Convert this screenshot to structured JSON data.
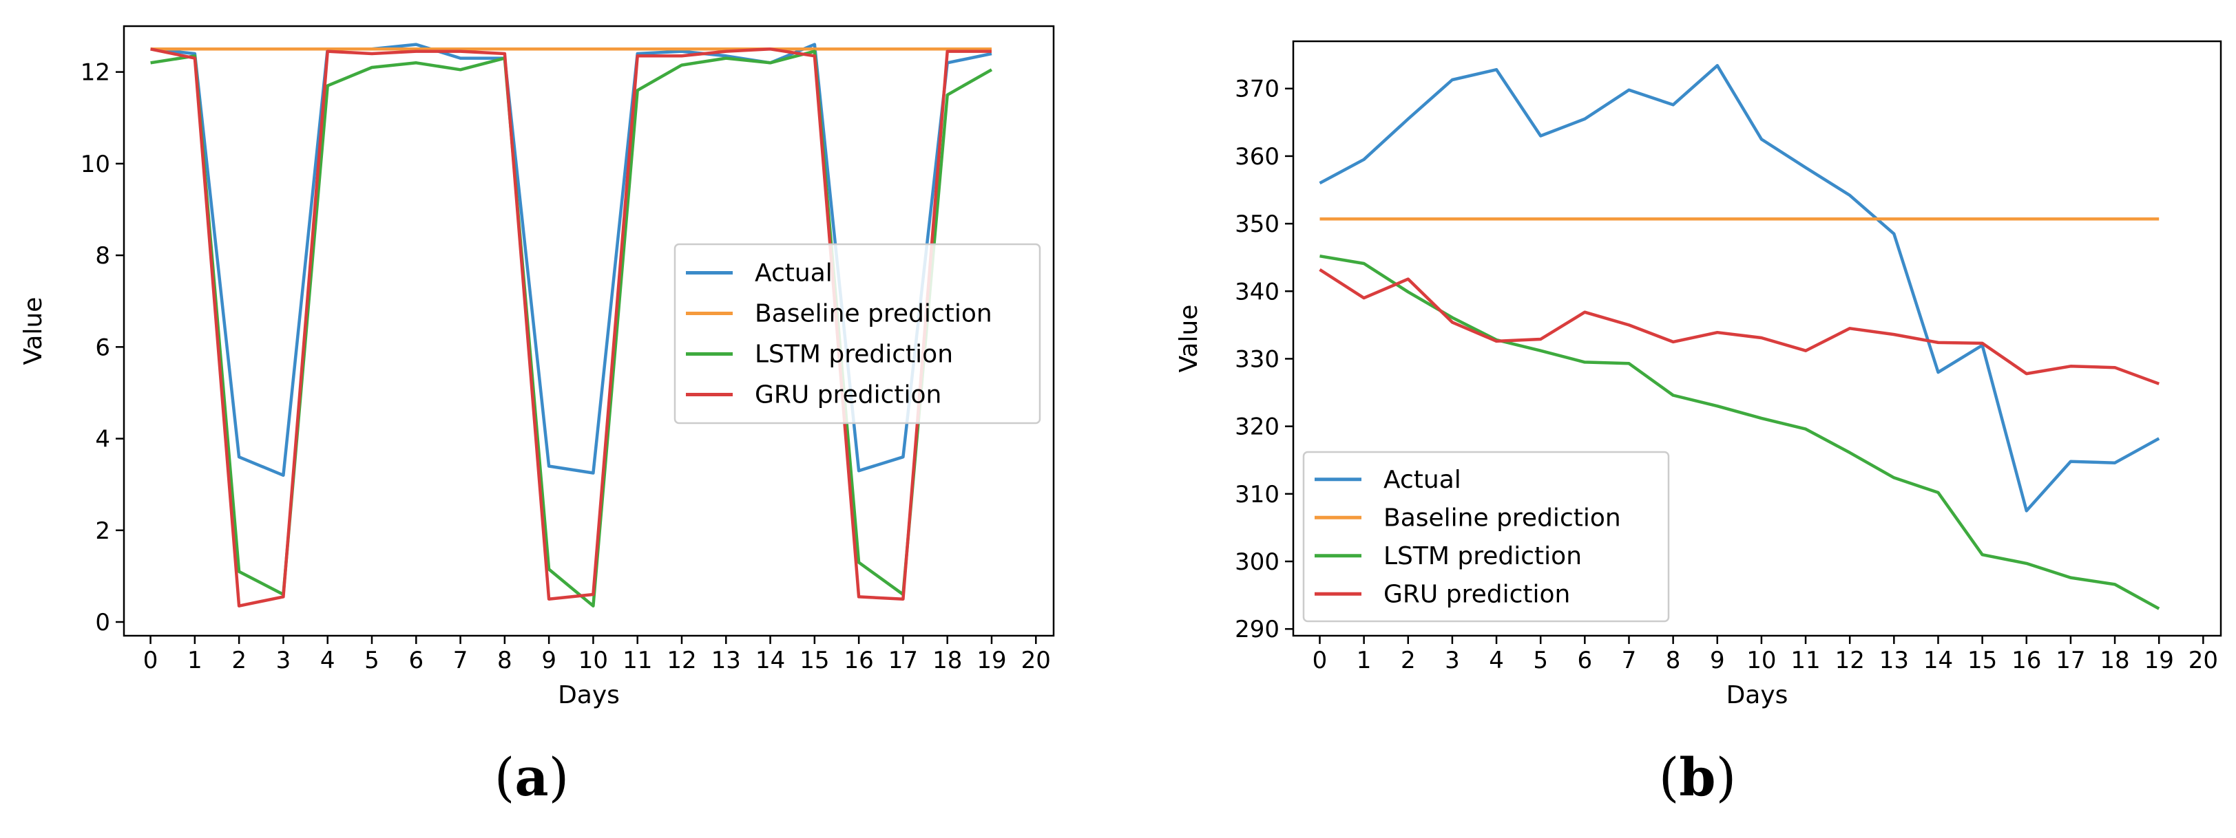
{
  "panel_labels": [
    {
      "open": "(",
      "letter": "a",
      "close": ")"
    },
    {
      "open": "(",
      "letter": "b",
      "close": ")"
    }
  ],
  "colors": {
    "actual": "#3b8bc9",
    "baseline": "#f59a3c",
    "lstm": "#3eaa3e",
    "gru": "#d93d3d",
    "axis": "#000000",
    "legend_border": "#cccccc"
  },
  "chart_data": [
    {
      "type": "line",
      "panel": "a",
      "title": "",
      "xlabel": "Days",
      "ylabel": "Value",
      "xlim": [
        -0.6,
        20.4
      ],
      "ylim": [
        -0.3,
        13.0
      ],
      "xticks": [
        0,
        1,
        2,
        3,
        4,
        5,
        6,
        7,
        8,
        9,
        10,
        11,
        12,
        13,
        14,
        15,
        16,
        17,
        18,
        19,
        20
      ],
      "xtick_labels": [
        "0",
        "1",
        "2",
        "3",
        "4",
        "5",
        "6",
        "7",
        "8",
        "9",
        "10",
        "11",
        "12",
        "13",
        "14",
        "15",
        "16",
        "17",
        "18",
        "19",
        "20"
      ],
      "yticks": [
        0,
        2,
        4,
        6,
        8,
        10,
        12
      ],
      "ytick_labels": [
        "0",
        "2",
        "4",
        "6",
        "8",
        "10",
        "12"
      ],
      "legend_position": "center-right",
      "x": [
        0,
        1,
        2,
        3,
        4,
        5,
        6,
        7,
        8,
        9,
        10,
        11,
        12,
        13,
        14,
        15,
        16,
        17,
        18,
        19
      ],
      "series": [
        {
          "name": "Actual",
          "color_key": "actual",
          "values": [
            12.5,
            12.4,
            3.6,
            3.2,
            12.5,
            12.5,
            12.6,
            12.3,
            12.3,
            3.4,
            3.25,
            12.4,
            12.45,
            12.35,
            12.2,
            12.6,
            3.3,
            3.6,
            12.2,
            12.4
          ]
        },
        {
          "name": "Baseline prediction",
          "color_key": "baseline",
          "values": [
            12.5,
            12.5,
            12.5,
            12.5,
            12.5,
            12.5,
            12.5,
            12.5,
            12.5,
            12.5,
            12.5,
            12.5,
            12.5,
            12.5,
            12.5,
            12.5,
            12.5,
            12.5,
            12.5,
            12.5
          ]
        },
        {
          "name": "LSTM prediction",
          "color_key": "lstm",
          "values": [
            12.2,
            12.35,
            1.1,
            0.6,
            11.7,
            12.1,
            12.2,
            12.05,
            12.3,
            1.15,
            0.35,
            11.6,
            12.15,
            12.3,
            12.2,
            12.45,
            1.3,
            0.6,
            11.5,
            12.05
          ]
        },
        {
          "name": "GRU prediction",
          "color_key": "gru",
          "values": [
            12.5,
            12.3,
            0.35,
            0.55,
            12.45,
            12.4,
            12.45,
            12.45,
            12.4,
            0.5,
            0.6,
            12.35,
            12.35,
            12.45,
            12.5,
            12.35,
            0.55,
            0.5,
            12.45,
            12.45
          ]
        }
      ]
    },
    {
      "type": "line",
      "panel": "b",
      "title": "",
      "xlabel": "Days",
      "ylabel": "Value",
      "xlim": [
        -0.6,
        20.4
      ],
      "ylim": [
        289,
        377
      ],
      "xticks": [
        0,
        1,
        2,
        3,
        4,
        5,
        6,
        7,
        8,
        9,
        10,
        11,
        12,
        13,
        14,
        15,
        16,
        17,
        18,
        19,
        20
      ],
      "xtick_labels": [
        "0",
        "1",
        "2",
        "3",
        "4",
        "5",
        "6",
        "7",
        "8",
        "9",
        "10",
        "11",
        "12",
        "13",
        "14",
        "15",
        "16",
        "17",
        "18",
        "19",
        "20"
      ],
      "yticks": [
        290,
        300,
        310,
        320,
        330,
        340,
        350,
        360,
        370
      ],
      "ytick_labels": [
        "290",
        "300",
        "310",
        "320",
        "330",
        "340",
        "350",
        "360",
        "370"
      ],
      "legend_position": "lower-left",
      "x": [
        0,
        1,
        2,
        3,
        4,
        5,
        6,
        7,
        8,
        9,
        10,
        11,
        12,
        13,
        14,
        15,
        16,
        17,
        18,
        19
      ],
      "series": [
        {
          "name": "Actual",
          "color_key": "actual",
          "values": [
            356,
            359.5,
            365.5,
            371.3,
            372.8,
            363,
            365.5,
            369.8,
            367.6,
            373.4,
            362.5,
            358.3,
            354.2,
            348.5,
            328,
            332,
            307.5,
            314.8,
            314.6,
            318.2
          ]
        },
        {
          "name": "Baseline prediction",
          "color_key": "baseline",
          "values": [
            350.7,
            350.7,
            350.7,
            350.7,
            350.7,
            350.7,
            350.7,
            350.7,
            350.7,
            350.7,
            350.7,
            350.7,
            350.7,
            350.7,
            350.7,
            350.7,
            350.7,
            350.7,
            350.7,
            350.7
          ]
        },
        {
          "name": "LSTM prediction",
          "color_key": "lstm",
          "values": [
            345.2,
            344.1,
            339.9,
            336.1,
            332.8,
            331.2,
            329.5,
            329.3,
            324.6,
            323,
            321.2,
            319.6,
            316.1,
            312.4,
            310.2,
            301,
            299.7,
            297.6,
            296.6,
            293
          ]
        },
        {
          "name": "GRU prediction",
          "color_key": "gru",
          "values": [
            343.2,
            339,
            341.8,
            335.4,
            332.6,
            332.9,
            336.9,
            335,
            332.5,
            333.9,
            333.1,
            331.2,
            334.5,
            333.6,
            332.4,
            332.3,
            327.8,
            328.9,
            328.7,
            326.3
          ]
        }
      ]
    }
  ]
}
